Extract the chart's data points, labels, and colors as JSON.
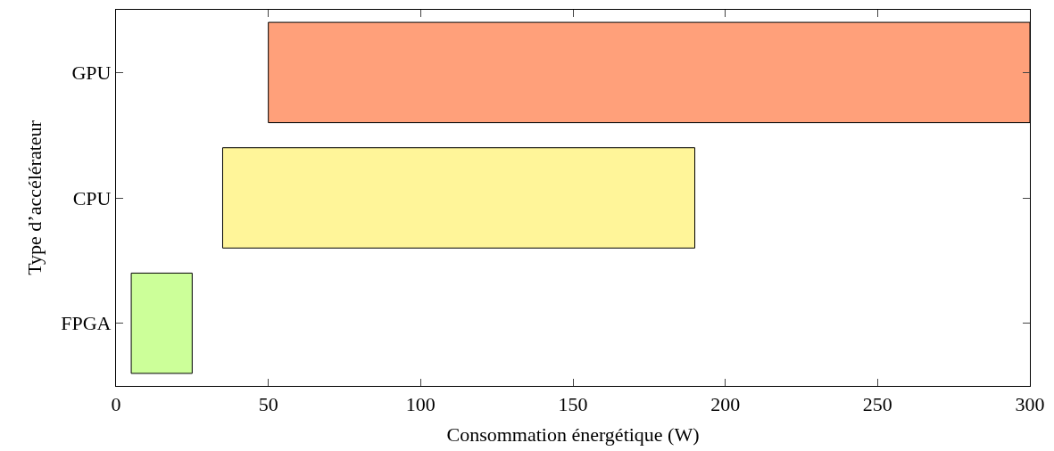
{
  "chart_data": {
    "type": "bar",
    "orientation": "horizontal",
    "xlabel": "Consommation énergétique (W)",
    "ylabel": "Type d’accélérateur",
    "categories": [
      "GPU",
      "CPU",
      "FPGA"
    ],
    "values": [
      250,
      155,
      20
    ],
    "base": [
      50,
      35,
      5
    ],
    "colors": [
      "#ffa07a",
      "#fff599",
      "#ccff99"
    ],
    "xlim": [
      0,
      300
    ],
    "xticks": [
      0,
      50,
      100,
      150,
      200,
      250,
      300
    ]
  }
}
